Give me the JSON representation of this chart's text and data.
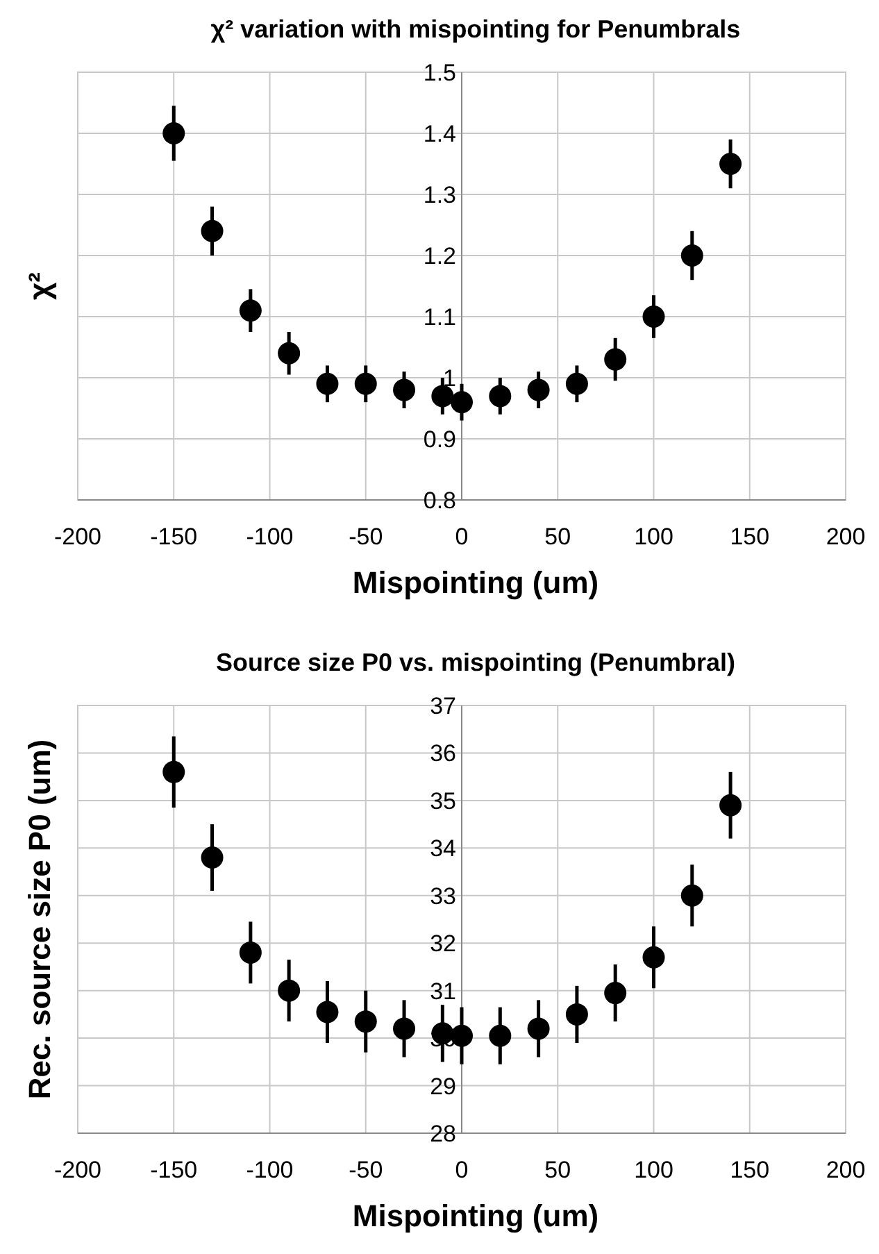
{
  "chart_data": [
    {
      "type": "scatter",
      "title": "χ² variation with mispointing for Penumbrals",
      "xlabel": "Mispointing (um)",
      "ylabel": "χ²",
      "x": [
        -150,
        -130,
        -110,
        -90,
        -70,
        -50,
        -30,
        -10,
        0,
        20,
        40,
        60,
        80,
        100,
        120,
        140
      ],
      "series": [
        {
          "color": "#000000",
          "values": [
            1.4,
            1.24,
            1.11,
            1.04,
            0.99,
            0.99,
            0.98,
            0.97,
            0.96,
            0.97,
            0.98,
            0.99,
            1.03,
            1.1,
            1.2,
            1.35
          ],
          "errors": [
            0.045,
            0.04,
            0.035,
            0.035,
            0.03,
            0.03,
            0.03,
            0.03,
            0.03,
            0.03,
            0.03,
            0.03,
            0.035,
            0.035,
            0.04,
            0.04
          ]
        }
      ],
      "xlim": [
        -200,
        200
      ],
      "xticks": [
        -200,
        -150,
        -100,
        -50,
        0,
        50,
        100,
        150,
        200
      ],
      "ylim": [
        0.8,
        1.5
      ],
      "yticks": [
        0.8,
        0.9,
        1,
        1.1,
        1.2,
        1.3,
        1.4,
        1.5
      ],
      "grid": true,
      "marker": "circle"
    },
    {
      "type": "scatter",
      "title": "Source size P0 vs. mispointing (Penumbral)",
      "xlabel": "Mispointing (um)",
      "ylabel": "Rec. source size P0 (um)",
      "x": [
        -150,
        -130,
        -110,
        -90,
        -70,
        -50,
        -30,
        -10,
        0,
        20,
        40,
        60,
        80,
        100,
        120,
        140
      ],
      "series": [
        {
          "color": "#000000",
          "values": [
            35.6,
            33.8,
            31.8,
            31.0,
            30.55,
            30.35,
            30.2,
            30.1,
            30.05,
            30.05,
            30.2,
            30.5,
            30.95,
            31.7,
            33.0,
            34.9
          ],
          "errors": [
            0.75,
            0.7,
            0.65,
            0.65,
            0.65,
            0.65,
            0.6,
            0.6,
            0.6,
            0.6,
            0.6,
            0.6,
            0.6,
            0.65,
            0.65,
            0.7
          ]
        }
      ],
      "xlim": [
        -200,
        200
      ],
      "xticks": [
        -200,
        -150,
        -100,
        -50,
        0,
        50,
        100,
        150,
        200
      ],
      "ylim": [
        28,
        37
      ],
      "yticks": [
        28,
        29,
        30,
        31,
        32,
        33,
        34,
        35,
        36,
        37
      ],
      "grid": true,
      "marker": "circle"
    }
  ]
}
